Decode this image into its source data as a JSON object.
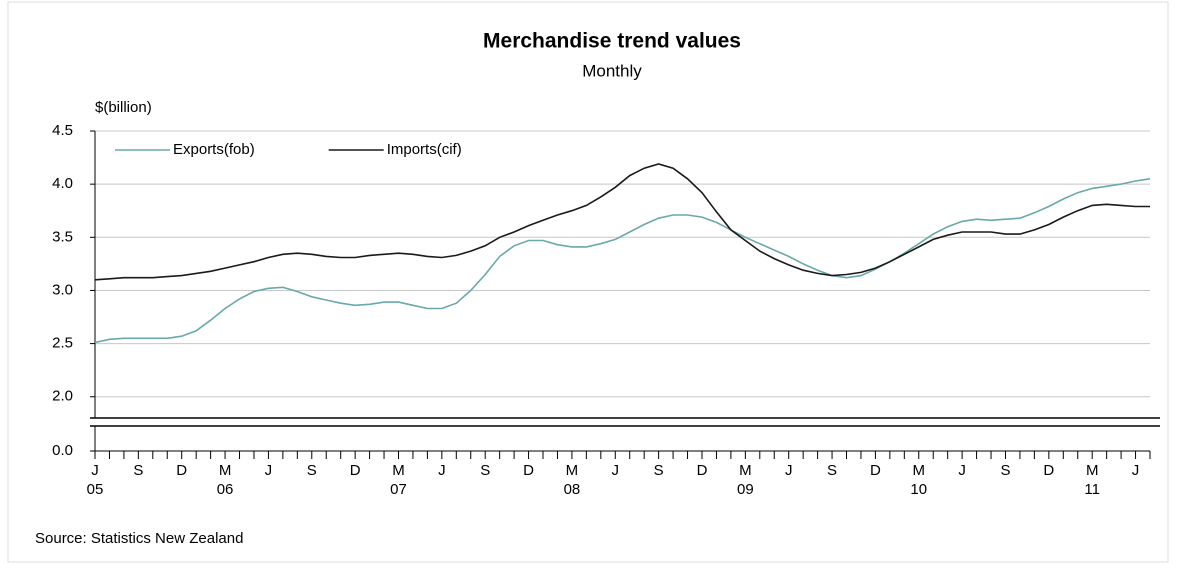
{
  "chart_data": {
    "type": "line",
    "title": "Merchandise trend values",
    "subtitle": "Monthly",
    "y_axis_label": "$(billion)",
    "source": "Source: Statistics New Zealand",
    "categories": [
      "J",
      null,
      null,
      "S",
      null,
      null,
      "D",
      null,
      null,
      "M",
      null,
      null,
      "J",
      null,
      null,
      "S",
      null,
      null,
      "D",
      null,
      null,
      "M",
      null,
      null,
      "J",
      null,
      null,
      "S",
      null,
      null,
      "D",
      null,
      null,
      "M",
      null,
      null,
      "J",
      null,
      null,
      "S",
      null,
      null,
      "D",
      null,
      null,
      "M",
      null,
      null,
      "J",
      null,
      null,
      "S",
      null,
      null,
      "D",
      null,
      null,
      "M",
      null,
      null,
      "J",
      null,
      null,
      "S",
      null,
      null,
      "D",
      null,
      null,
      "M",
      null,
      null,
      "J",
      null
    ],
    "year_categories": [
      "05",
      null,
      null,
      null,
      null,
      null,
      null,
      null,
      null,
      "06",
      null,
      null,
      null,
      null,
      null,
      null,
      null,
      null,
      null,
      null,
      null,
      "07",
      null,
      null,
      null,
      null,
      null,
      null,
      null,
      null,
      null,
      null,
      null,
      "08",
      null,
      null,
      null,
      null,
      null,
      null,
      null,
      null,
      null,
      null,
      null,
      "09",
      null,
      null,
      null,
      null,
      null,
      null,
      null,
      null,
      null,
      null,
      null,
      "10",
      null,
      null,
      null,
      null,
      null,
      null,
      null,
      null,
      null,
      null,
      null,
      "11",
      null,
      null,
      null,
      null
    ],
    "series": [
      {
        "name": "Exports(fob)",
        "color": "#6aa9a9",
        "values": [
          2.51,
          2.54,
          2.55,
          2.55,
          2.55,
          2.55,
          2.57,
          2.62,
          2.72,
          2.83,
          2.92,
          2.99,
          3.02,
          3.03,
          2.99,
          2.94,
          2.91,
          2.88,
          2.86,
          2.87,
          2.89,
          2.89,
          2.86,
          2.83,
          2.83,
          2.88,
          3.0,
          3.15,
          3.32,
          3.42,
          3.47,
          3.47,
          3.43,
          3.41,
          3.41,
          3.44,
          3.48,
          3.55,
          3.62,
          3.68,
          3.71,
          3.71,
          3.69,
          3.64,
          3.57,
          3.5,
          3.44,
          3.38,
          3.32,
          3.25,
          3.19,
          3.14,
          3.12,
          3.14,
          3.2,
          3.27,
          3.35,
          3.44,
          3.53,
          3.6,
          3.65,
          3.67,
          3.66,
          3.67,
          3.68,
          3.73,
          3.79,
          3.86,
          3.92,
          3.96,
          3.98,
          4.0,
          4.03,
          4.05
        ]
      },
      {
        "name": "Imports(cif)",
        "color": "#1a1a1a",
        "values": [
          3.1,
          3.11,
          3.12,
          3.12,
          3.12,
          3.13,
          3.14,
          3.16,
          3.18,
          3.21,
          3.24,
          3.27,
          3.31,
          3.34,
          3.35,
          3.34,
          3.32,
          3.31,
          3.31,
          3.33,
          3.34,
          3.35,
          3.34,
          3.32,
          3.31,
          3.33,
          3.37,
          3.42,
          3.5,
          3.55,
          3.61,
          3.66,
          3.71,
          3.75,
          3.8,
          3.88,
          3.97,
          4.08,
          4.15,
          4.19,
          4.15,
          4.05,
          3.92,
          3.74,
          3.57,
          3.47,
          3.37,
          3.3,
          3.24,
          3.19,
          3.16,
          3.14,
          3.15,
          3.17,
          3.21,
          3.27,
          3.34,
          3.41,
          3.48,
          3.52,
          3.55,
          3.55,
          3.55,
          3.53,
          3.53,
          3.57,
          3.62,
          3.69,
          3.75,
          3.8,
          3.81,
          3.8,
          3.79,
          3.79
        ]
      }
    ],
    "ylim": [
      1.8,
      4.5
    ],
    "yticks": [
      {
        "value": 0,
        "label": "0.0"
      },
      {
        "value": 2,
        "label": "2.0"
      },
      2.5,
      {
        "value": 3,
        "label": "3.0"
      },
      3.5,
      {
        "value": 4,
        "label": "4.0"
      },
      4.5
    ],
    "axis_break": true,
    "grid": true,
    "legend": "upper left"
  }
}
